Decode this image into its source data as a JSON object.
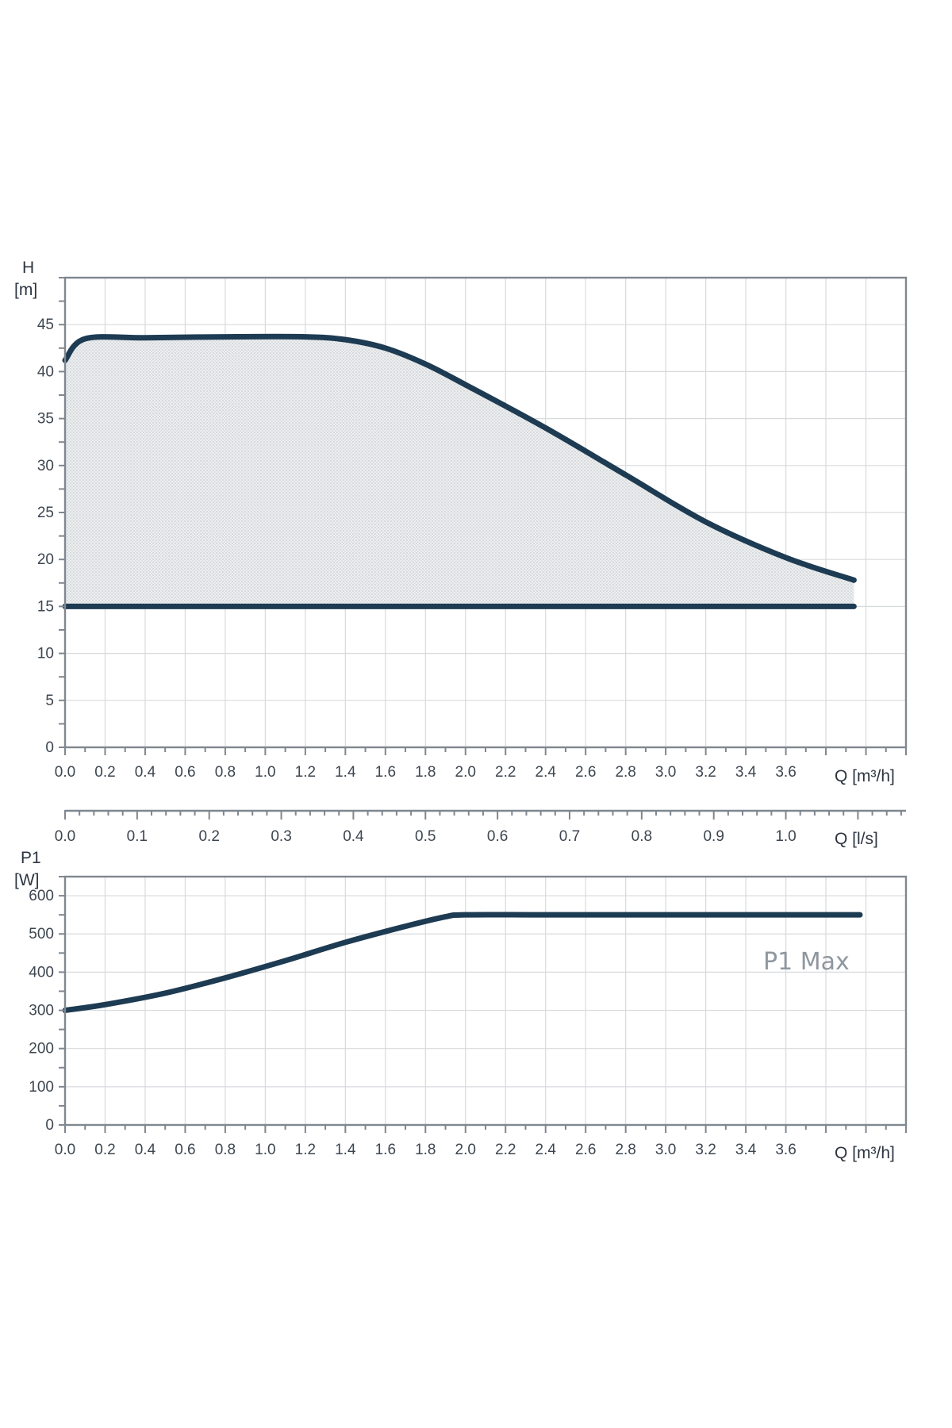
{
  "chart_data": [
    {
      "type": "area",
      "ylabel": "H",
      "yunit": "[m]",
      "xlabel": "Q [m³/h]",
      "xlim": [
        0,
        4.2
      ],
      "ylim": [
        0,
        50
      ],
      "grid": true,
      "x_ticks": [
        "0.0",
        "0.2",
        "0.4",
        "0.6",
        "0.8",
        "1.0",
        "1.2",
        "1.4",
        "1.6",
        "1.8",
        "2.0",
        "2.2",
        "2.4",
        "2.6",
        "2.8",
        "3.0",
        "3.2",
        "3.4",
        "3.6"
      ],
      "y_ticks": [
        "0",
        "5",
        "10",
        "15",
        "20",
        "25",
        "30",
        "35",
        "40",
        "45"
      ],
      "series": [
        {
          "points": [
            [
              0.0,
              41.2
            ],
            [
              0.1,
              43.5
            ],
            [
              0.4,
              43.6
            ],
            [
              0.8,
              43.7
            ],
            [
              1.2,
              43.7
            ],
            [
              1.4,
              43.4
            ],
            [
              1.6,
              42.5
            ],
            [
              1.8,
              40.8
            ],
            [
              2.0,
              38.6
            ],
            [
              2.4,
              34.0
            ],
            [
              2.8,
              29.0
            ],
            [
              3.2,
              24.0
            ],
            [
              3.6,
              20.2
            ],
            [
              3.94,
              17.8
            ]
          ]
        },
        {
          "points": [
            [
              0.0,
              15.0
            ],
            [
              3.94,
              15.0
            ]
          ]
        }
      ],
      "shaded_region": "between the upper curve and 15 m"
    },
    {
      "type": "axis",
      "xlabel": "Q [l/s]",
      "xlim": [
        0,
        1.1667
      ],
      "x_ticks": [
        "0.0",
        "0.1",
        "0.2",
        "0.3",
        "0.4",
        "0.5",
        "0.6",
        "0.7",
        "0.8",
        "0.9",
        "1.0"
      ]
    },
    {
      "type": "line",
      "ylabel": "P1",
      "yunit": "[W]",
      "xlabel": "Q [m³/h]",
      "xlim": [
        0,
        4.2
      ],
      "ylim": [
        0,
        650
      ],
      "grid": true,
      "x_ticks": [
        "0.0",
        "0.2",
        "0.4",
        "0.6",
        "0.8",
        "1.0",
        "1.2",
        "1.4",
        "1.6",
        "1.8",
        "2.0",
        "2.2",
        "2.4",
        "2.6",
        "2.8",
        "3.0",
        "3.2",
        "3.4",
        "3.6"
      ],
      "y_ticks": [
        "0",
        "100",
        "200",
        "300",
        "400",
        "500",
        "600"
      ],
      "series": [
        {
          "points": [
            [
              0.0,
              300
            ],
            [
              0.2,
              315
            ],
            [
              0.5,
              345
            ],
            [
              0.8,
              385
            ],
            [
              1.1,
              430
            ],
            [
              1.4,
              478
            ],
            [
              1.7,
              520
            ],
            [
              1.9,
              545
            ],
            [
              2.0,
              550
            ],
            [
              2.4,
              550
            ],
            [
              3.0,
              550
            ],
            [
              3.97,
              550
            ]
          ]
        }
      ],
      "annotation": "P1 Max"
    }
  ]
}
